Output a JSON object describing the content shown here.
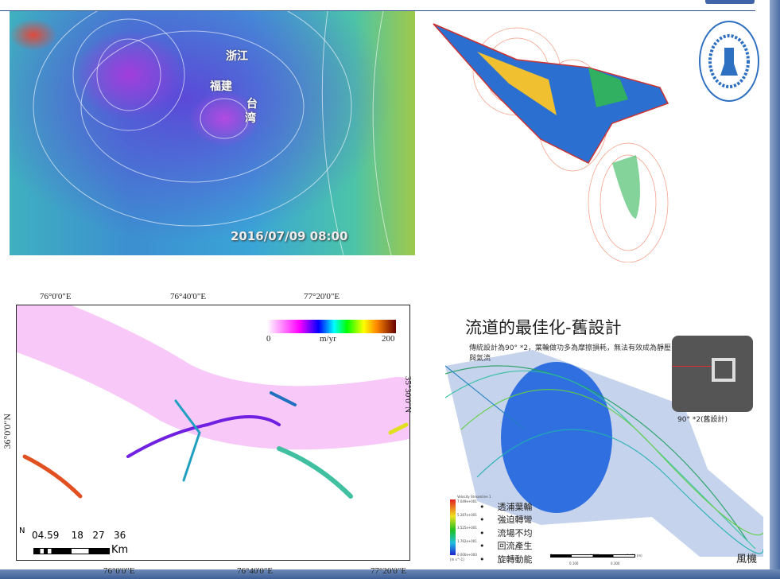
{
  "weather_map": {
    "labels": [
      "浙江",
      "福建",
      "台",
      "湾"
    ],
    "timestamp": "2016/07/09 08:00"
  },
  "logo": {
    "text": "BEIJING JIAOTONG UNIVERSITY CITY COLLEGE",
    "year": "2004"
  },
  "glacier_map": {
    "top_ticks": [
      "76°0'0\"E",
      "76°40'0\"E",
      "77°20'0\"E"
    ],
    "bottom_ticks": [
      "76°0'0\"E",
      "76°40'0\"E",
      "77°20'0\"E"
    ],
    "left_tick": "36°0'0\"N",
    "right_tick": "35°30'0\"N",
    "colorbar": {
      "min": "0",
      "unit": "m/yr",
      "max": "200"
    },
    "scale": {
      "north": "N",
      "labels": "04.59    18   27   36",
      "unit": "Km"
    }
  },
  "cfd_slide": {
    "title": "流道的最佳化-舊設計",
    "subtitle": "傳統設計為90° *2，葉輪做功多為摩擦損耗，無法有效成為靜壓與氣流",
    "inset_label": "90° *2(舊設計)",
    "legend_title": "Velocity Streamline 1",
    "legend_values": [
      "7.049e+001",
      "5.287e+001",
      "3.525e+001",
      "1.762e+001",
      "0.000e+000"
    ],
    "legend_unit": "[m s^-1]",
    "bullets": [
      "透浦葉輪",
      "強迫轉彎",
      "流場不均",
      "回流產生",
      "旋轉動能"
    ],
    "scale_labels": [
      "0",
      "0.200",
      "0.400 (m)",
      "0.100",
      "0.300"
    ],
    "corner_text": "風機"
  },
  "colors": {
    "frame_blue": "#3d5f98"
  }
}
